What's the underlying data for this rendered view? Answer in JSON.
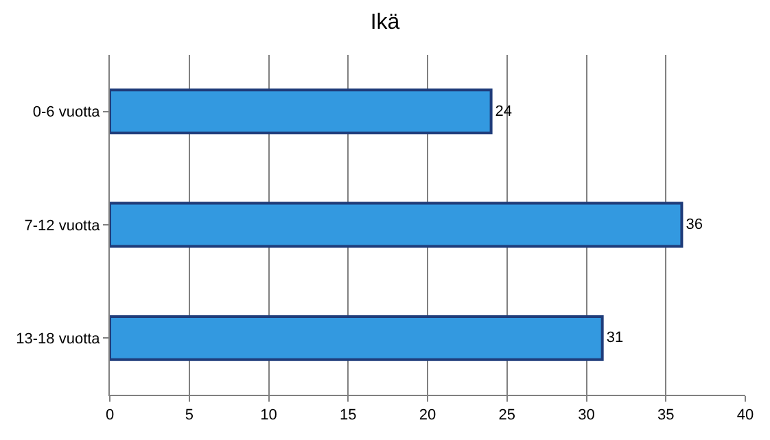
{
  "chart_data": {
    "type": "bar",
    "title": "Ikä",
    "orientation": "horizontal",
    "categories": [
      "0-6 vuotta",
      "7-12 vuotta",
      "13-18 vuotta"
    ],
    "values": [
      24,
      36,
      31
    ],
    "color": "#3399e0",
    "xlim": [
      0,
      40
    ],
    "xticks": [
      0,
      5,
      10,
      15,
      20,
      25,
      30,
      35,
      40
    ],
    "grid": "x",
    "data_labels": true,
    "legend": false
  }
}
